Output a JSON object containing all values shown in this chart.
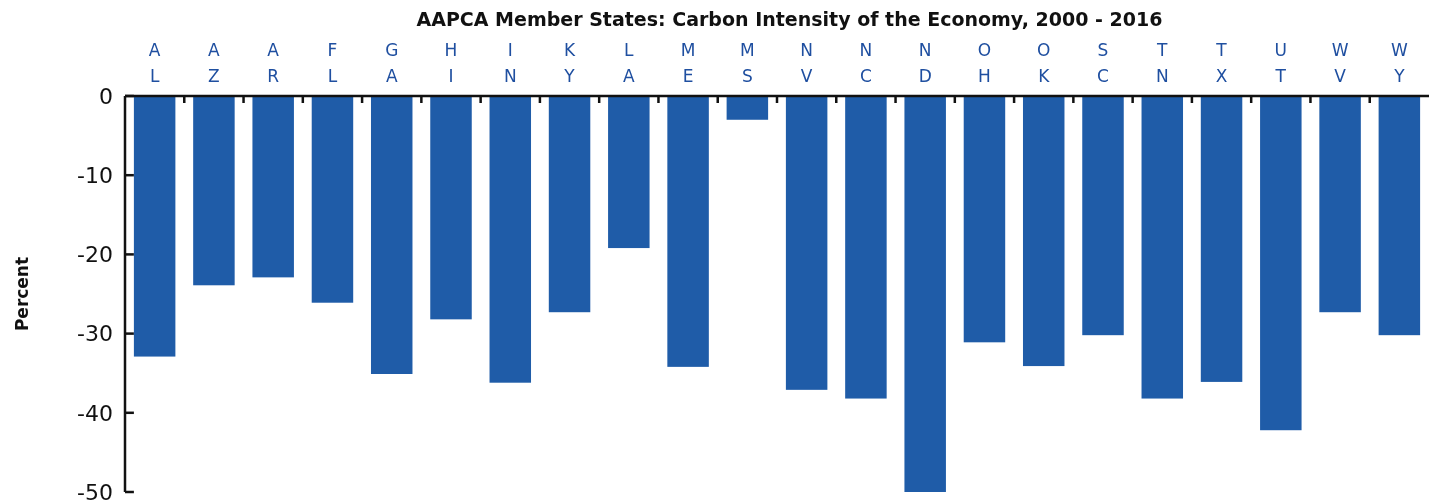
{
  "chart_data": {
    "type": "bar",
    "title": "AAPCA Member States: Carbon Intensity of the Economy, 2000 - 2016",
    "ylabel": "Percent",
    "categories": [
      "AL",
      "AZ",
      "AR",
      "FL",
      "GA",
      "HI",
      "IN",
      "KY",
      "LA",
      "ME",
      "MS",
      "NV",
      "NC",
      "ND",
      "OH",
      "OK",
      "SC",
      "TN",
      "TX",
      "UT",
      "WV",
      "WY"
    ],
    "values": [
      -32.9,
      -23.9,
      -22.9,
      -26.1,
      -35.1,
      -28.2,
      -36.2,
      -27.3,
      -19.2,
      -34.2,
      -3,
      -37.1,
      -38.2,
      -50,
      -31.1,
      -34.1,
      -30.2,
      -38.2,
      -36.1,
      -42.2,
      -27.3,
      -30.2
    ],
    "color": "#1f5ca8",
    "ylim": [
      -50,
      0
    ],
    "yticks": [
      0,
      -10,
      -20,
      -30,
      -40,
      -50
    ],
    "grid": false
  }
}
